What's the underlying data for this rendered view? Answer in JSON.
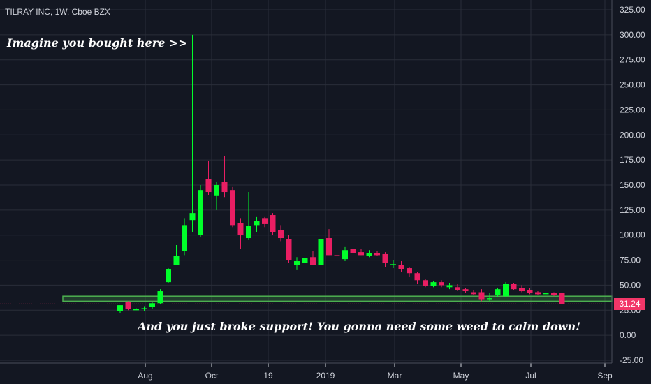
{
  "header": {
    "symbol": "TILRAY INC, 1W, Cboe BZX"
  },
  "annotations": {
    "top": "Imagine you bought here >>",
    "bottom": "And you just broke support! You gonna need some weed to calm down!"
  },
  "last_price": {
    "value": 31.24,
    "label": "31.24"
  },
  "colors": {
    "background": "#131722",
    "grid": "#2a2e39",
    "up": "#00ff2a",
    "down": "#e91e63",
    "support_band": "#4caf50",
    "text": "#d1d4dc",
    "last_price": "#f23668"
  },
  "chart_data": {
    "type": "candlestick",
    "title": "TILRAY INC, 1W, Cboe BZX",
    "xlabel": "",
    "ylabel": "",
    "ylim": [
      -25,
      325
    ],
    "yticks": [
      "325.00",
      "300.00",
      "275.00",
      "250.00",
      "225.00",
      "200.00",
      "175.00",
      "150.00",
      "125.00",
      "100.00",
      "75.00",
      "50.00",
      "25.00",
      "0.00",
      "-25.00"
    ],
    "xticks": [
      "Aug",
      "Oct",
      "19",
      "2019",
      "Mar",
      "May",
      "Jul",
      "Sep"
    ],
    "support_band": [
      34,
      39
    ],
    "last_price_line": 31.24,
    "candles": [
      {
        "week": 0,
        "o": 24,
        "h": 30,
        "l": 22,
        "c": 30
      },
      {
        "week": 1,
        "o": 33,
        "h": 34,
        "l": 25,
        "c": 26
      },
      {
        "week": 2,
        "o": 26,
        "h": 27,
        "l": 25,
        "c": 26
      },
      {
        "week": 3,
        "o": 26,
        "h": 29,
        "l": 24,
        "c": 27
      },
      {
        "week": 4,
        "o": 28,
        "h": 33,
        "l": 26,
        "c": 32
      },
      {
        "week": 5,
        "o": 32,
        "h": 46,
        "l": 31,
        "c": 44
      },
      {
        "week": 6,
        "o": 53,
        "h": 67,
        "l": 52,
        "c": 66
      },
      {
        "week": 7,
        "o": 70,
        "h": 90,
        "l": 70,
        "c": 79
      },
      {
        "week": 8,
        "o": 84,
        "h": 117,
        "l": 80,
        "c": 110
      },
      {
        "week": 9,
        "o": 115,
        "h": 300,
        "l": 103,
        "c": 122
      },
      {
        "week": 10,
        "o": 100,
        "h": 150,
        "l": 98,
        "c": 145
      },
      {
        "week": 11,
        "o": 156,
        "h": 174,
        "l": 140,
        "c": 143
      },
      {
        "week": 12,
        "o": 139,
        "h": 153,
        "l": 125,
        "c": 150
      },
      {
        "week": 13,
        "o": 153,
        "h": 179,
        "l": 138,
        "c": 143
      },
      {
        "week": 14,
        "o": 145,
        "h": 148,
        "l": 108,
        "c": 110
      },
      {
        "week": 15,
        "o": 112,
        "h": 117,
        "l": 86,
        "c": 100
      },
      {
        "week": 16,
        "o": 97,
        "h": 143,
        "l": 95,
        "c": 109
      },
      {
        "week": 17,
        "o": 110,
        "h": 118,
        "l": 103,
        "c": 114
      },
      {
        "week": 18,
        "o": 117,
        "h": 118,
        "l": 108,
        "c": 111
      },
      {
        "week": 19,
        "o": 120,
        "h": 122,
        "l": 100,
        "c": 103
      },
      {
        "week": 20,
        "o": 105,
        "h": 110,
        "l": 94,
        "c": 97
      },
      {
        "week": 21,
        "o": 96,
        "h": 100,
        "l": 72,
        "c": 75
      },
      {
        "week": 22,
        "o": 70,
        "h": 78,
        "l": 65,
        "c": 74
      },
      {
        "week": 23,
        "o": 72,
        "h": 80,
        "l": 70,
        "c": 77
      },
      {
        "week": 24,
        "o": 78,
        "h": 84,
        "l": 70,
        "c": 70
      },
      {
        "week": 25,
        "o": 70,
        "h": 98,
        "l": 70,
        "c": 96
      },
      {
        "week": 26,
        "o": 97,
        "h": 106,
        "l": 80,
        "c": 80
      },
      {
        "week": 27,
        "o": 80,
        "h": 83,
        "l": 73,
        "c": 79
      },
      {
        "week": 28,
        "o": 76,
        "h": 88,
        "l": 74,
        "c": 85
      },
      {
        "week": 29,
        "o": 86,
        "h": 91,
        "l": 81,
        "c": 82
      },
      {
        "week": 30,
        "o": 83,
        "h": 86,
        "l": 80,
        "c": 80
      },
      {
        "week": 31,
        "o": 79,
        "h": 85,
        "l": 78,
        "c": 82
      },
      {
        "week": 32,
        "o": 82,
        "h": 84,
        "l": 79,
        "c": 80
      },
      {
        "week": 33,
        "o": 81,
        "h": 83,
        "l": 68,
        "c": 72
      },
      {
        "week": 34,
        "o": 71,
        "h": 75,
        "l": 67,
        "c": 71
      },
      {
        "week": 35,
        "o": 70,
        "h": 74,
        "l": 63,
        "c": 66
      },
      {
        "week": 36,
        "o": 67,
        "h": 68,
        "l": 58,
        "c": 62
      },
      {
        "week": 37,
        "o": 62,
        "h": 63,
        "l": 51,
        "c": 55
      },
      {
        "week": 38,
        "o": 55,
        "h": 56,
        "l": 48,
        "c": 49
      },
      {
        "week": 39,
        "o": 49,
        "h": 54,
        "l": 48,
        "c": 53
      },
      {
        "week": 40,
        "o": 53,
        "h": 55,
        "l": 48,
        "c": 50
      },
      {
        "week": 41,
        "o": 48,
        "h": 52,
        "l": 46,
        "c": 50
      },
      {
        "week": 42,
        "o": 48,
        "h": 51,
        "l": 44,
        "c": 45
      },
      {
        "week": 43,
        "o": 46,
        "h": 47,
        "l": 42,
        "c": 44
      },
      {
        "week": 44,
        "o": 43,
        "h": 45,
        "l": 40,
        "c": 41
      },
      {
        "week": 45,
        "o": 43,
        "h": 46,
        "l": 34,
        "c": 36
      },
      {
        "week": 46,
        "o": 36,
        "h": 42,
        "l": 34,
        "c": 37
      },
      {
        "week": 47,
        "o": 40,
        "h": 47,
        "l": 38,
        "c": 46
      },
      {
        "week": 48,
        "o": 39,
        "h": 53,
        "l": 38,
        "c": 51
      },
      {
        "week": 49,
        "o": 51,
        "h": 52,
        "l": 45,
        "c": 46
      },
      {
        "week": 50,
        "o": 47,
        "h": 50,
        "l": 43,
        "c": 44
      },
      {
        "week": 51,
        "o": 45,
        "h": 47,
        "l": 41,
        "c": 42
      },
      {
        "week": 52,
        "o": 43,
        "h": 44,
        "l": 40,
        "c": 41
      },
      {
        "week": 53,
        "o": 41,
        "h": 43,
        "l": 39,
        "c": 42
      },
      {
        "week": 54,
        "o": 42,
        "h": 43,
        "l": 39,
        "c": 40
      },
      {
        "week": 55,
        "o": 42,
        "h": 47,
        "l": 29,
        "c": 31
      }
    ]
  }
}
